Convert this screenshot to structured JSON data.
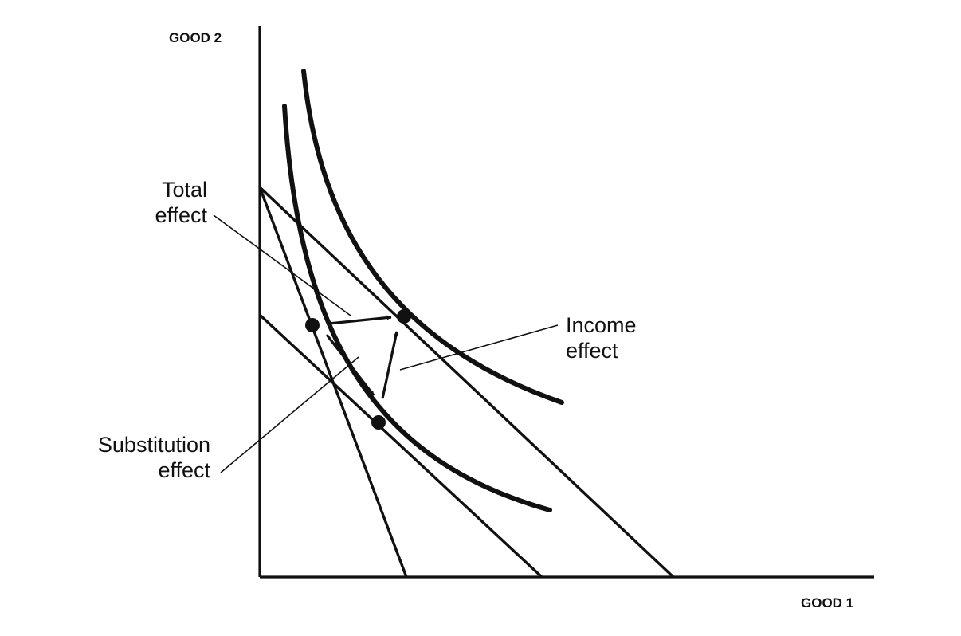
{
  "axes": {
    "y_label": "GOOD 2",
    "x_label": "GOOD 1"
  },
  "annotations": {
    "total_effect": [
      "Total",
      "effect"
    ],
    "income_effect": [
      "Income",
      "effect"
    ],
    "substitution_effect": [
      "Substitution",
      "effect"
    ]
  },
  "colors": {
    "ink": "#111111",
    "background": "#ffffff"
  }
}
